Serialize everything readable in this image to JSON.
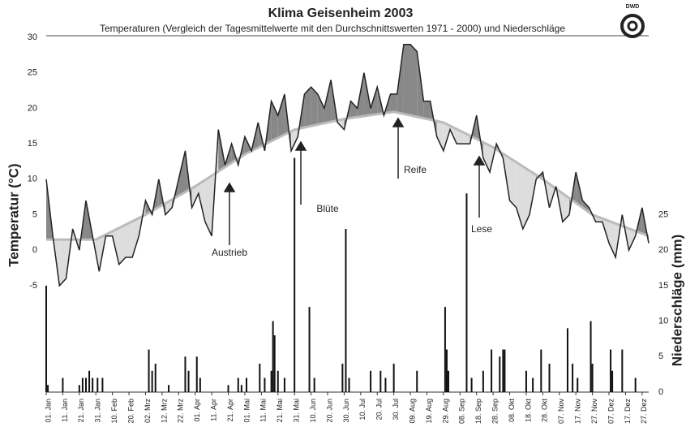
{
  "chart_data": {
    "type": "line",
    "title": "Klima Geisenheim 2003",
    "subtitle": "Temperaturen (Vergleich der Tagesmittelwerte mit den Durchschnittswerten 1971 - 2000) und Niederschläge",
    "ylabel": "Temperatur (°C)",
    "y2label": "Niederschläge (mm)",
    "logo_text": "DWD",
    "xlim": [
      1,
      365
    ],
    "xticks": [
      {
        "value": 1,
        "label": "01. Jan"
      },
      {
        "value": 11,
        "label": "11. Jan"
      },
      {
        "value": 21,
        "label": "21. Jan"
      },
      {
        "value": 31,
        "label": "31. Jan"
      },
      {
        "value": 41,
        "label": "10. Feb"
      },
      {
        "value": 51,
        "label": "20. Feb"
      },
      {
        "value": 61,
        "label": "02. Mrz"
      },
      {
        "value": 71,
        "label": "12. Mrz"
      },
      {
        "value": 81,
        "label": "22. Mrz"
      },
      {
        "value": 91,
        "label": "01. Apr"
      },
      {
        "value": 101,
        "label": "11. Apr"
      },
      {
        "value": 111,
        "label": "21. Apr"
      },
      {
        "value": 121,
        "label": "01. Mai"
      },
      {
        "value": 131,
        "label": "11. Mai"
      },
      {
        "value": 141,
        "label": "21. Mai"
      },
      {
        "value": 151,
        "label": "31. Mai"
      },
      {
        "value": 161,
        "label": "10. Jun"
      },
      {
        "value": 171,
        "label": "20. Jun"
      },
      {
        "value": 181,
        "label": "30. Jun"
      },
      {
        "value": 191,
        "label": "10. Jul"
      },
      {
        "value": 201,
        "label": "20. Jul"
      },
      {
        "value": 211,
        "label": "30. Jul"
      },
      {
        "value": 221,
        "label": "09. Aug"
      },
      {
        "value": 231,
        "label": "19. Aug"
      },
      {
        "value": 241,
        "label": "29. Aug"
      },
      {
        "value": 251,
        "label": "08. Sep"
      },
      {
        "value": 261,
        "label": "18. Sep"
      },
      {
        "value": 271,
        "label": "28. Sep"
      },
      {
        "value": 281,
        "label": "08. Okt"
      },
      {
        "value": 291,
        "label": "18. Okt"
      },
      {
        "value": 301,
        "label": "28. Okt"
      },
      {
        "value": 311,
        "label": "07. Nov"
      },
      {
        "value": 321,
        "label": "17. Nov"
      },
      {
        "value": 331,
        "label": "27. Nov"
      },
      {
        "value": 341,
        "label": "07. Dez"
      },
      {
        "value": 351,
        "label": "17. Dez"
      },
      {
        "value": 361,
        "label": "27. Dez"
      }
    ],
    "ylim": [
      -20,
      30
    ],
    "yticks": [
      -5,
      0,
      5,
      10,
      15,
      20,
      25,
      30
    ],
    "y2lim": [
      0,
      50
    ],
    "y2ticks": [
      0,
      5,
      10,
      15,
      20,
      25
    ],
    "annotations": [
      "Austrieb",
      "Blüte",
      "Reife",
      "Lese"
    ],
    "series": [
      {
        "color": "#222222",
        "x": [
          1,
          5,
          9,
          13,
          17,
          21,
          25,
          29,
          33,
          37,
          41,
          45,
          49,
          53,
          57,
          61,
          65,
          69,
          73,
          77,
          81,
          85,
          89,
          93,
          97,
          101,
          105,
          109,
          113,
          117,
          121,
          125,
          129,
          133,
          137,
          141,
          145,
          149,
          153,
          157,
          161,
          165,
          169,
          173,
          177,
          181,
          185,
          189,
          193,
          197,
          201,
          205,
          209,
          213,
          217,
          221,
          225,
          229,
          233,
          237,
          241,
          245,
          249,
          253,
          257,
          261,
          265,
          269,
          273,
          277,
          281,
          285,
          289,
          293,
          297,
          301,
          305,
          309,
          313,
          317,
          321,
          325,
          329,
          333,
          337,
          341,
          345,
          349,
          353,
          357,
          361,
          365
        ],
        "values": [
          10,
          2,
          -5,
          -4,
          3,
          0,
          7,
          2,
          -3,
          2,
          2,
          -2,
          -1,
          -1,
          2,
          7,
          5,
          10,
          5,
          6,
          10,
          14,
          6,
          8,
          4,
          2,
          17,
          12,
          15,
          12,
          16,
          14,
          18,
          14,
          21,
          19,
          22,
          14,
          16,
          22,
          23,
          22,
          20,
          24,
          18,
          17,
          21,
          20,
          25,
          20,
          23,
          19,
          22,
          22,
          29,
          29,
          28,
          21,
          21,
          16,
          14,
          17,
          15,
          15,
          15,
          19,
          13,
          11,
          15,
          13,
          7,
          6,
          3,
          5,
          10,
          11,
          6,
          9,
          4,
          5,
          11,
          7,
          6,
          4,
          4,
          1,
          -1,
          5,
          0,
          2,
          6,
          1
        ]
      },
      {
        "color": "#bbbbbb",
        "x": [
          1,
          31,
          61,
          91,
          121,
          151,
          181,
          211,
          241,
          271,
          301,
          331,
          365
        ],
        "values": [
          1.5,
          1.5,
          5,
          9,
          13.5,
          17,
          18.5,
          19.5,
          18,
          14.5,
          10,
          5,
          2
        ]
      },
      {
        "type": "bar",
        "axis": "y2",
        "color": "#111111",
        "x": [
          1,
          2,
          11,
          21,
          23,
          25,
          27,
          29,
          32,
          35,
          63,
          65,
          67,
          75,
          85,
          87,
          92,
          94,
          111,
          117,
          119,
          122,
          130,
          133,
          137,
          138,
          139,
          141,
          145,
          151,
          160,
          163,
          180,
          182,
          184,
          197,
          203,
          206,
          211,
          225,
          242,
          243,
          244,
          255,
          258,
          265,
          270,
          275,
          277,
          278,
          291,
          295,
          300,
          305,
          316,
          319,
          322,
          330,
          331,
          342,
          343,
          349,
          357
        ],
        "values": [
          15,
          1,
          2,
          1,
          2,
          2,
          3,
          2,
          2,
          2,
          6,
          3,
          4,
          1,
          5,
          3,
          5,
          2,
          1,
          2,
          1,
          2,
          4,
          2,
          3,
          10,
          8,
          3,
          2,
          33,
          12,
          2,
          4,
          23,
          2,
          3,
          3,
          2,
          4,
          3,
          12,
          6,
          3,
          28,
          2,
          3,
          6,
          5,
          6,
          6,
          3,
          2,
          6,
          4,
          9,
          4,
          2,
          10,
          4,
          6,
          3,
          6,
          2
        ]
      }
    ]
  }
}
